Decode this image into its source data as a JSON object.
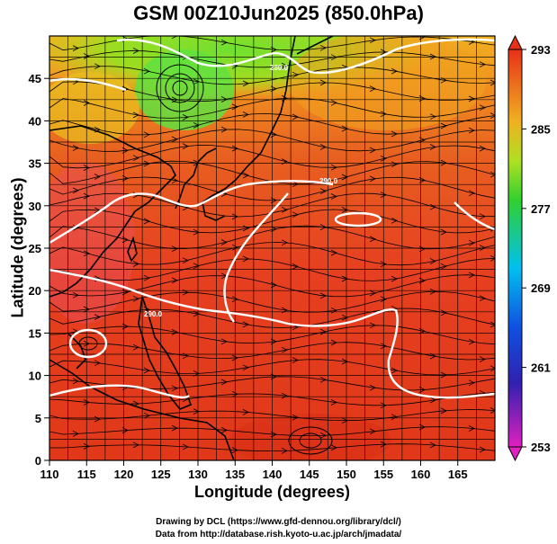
{
  "title": "GSM 00Z10Jun2025 (850.0hPa)",
  "xaxis": {
    "label": "Longitude (degrees)",
    "range": [
      110,
      170
    ],
    "ticks": [
      "110",
      "115",
      "120",
      "125",
      "130",
      "135",
      "140",
      "145",
      "150",
      "155",
      "160",
      "165"
    ]
  },
  "yaxis": {
    "label": "Latitude  (degrees)",
    "range": [
      0,
      50
    ],
    "ticks": [
      "0",
      "5",
      "10",
      "15",
      "20",
      "25",
      "30",
      "35",
      "40",
      "45"
    ]
  },
  "colorbar": {
    "labels": [
      "293",
      "285",
      "277",
      "269",
      "261",
      "253"
    ],
    "min": 253,
    "max": 293,
    "colors": [
      "#d010c0",
      "#2020c0",
      "#00c0f0",
      "#20d040",
      "#d0e020",
      "#f08010",
      "#e83818"
    ]
  },
  "contour_labels": [
    "280.0",
    "290.0",
    "290.0"
  ],
  "credits": {
    "line1": "Drawing by DCL (https://www.gfd-dennou.org/library/dcl/)",
    "line2": "Data from http://database.rish.kyoto-u.ac.jp/arch/jmadata/"
  }
}
